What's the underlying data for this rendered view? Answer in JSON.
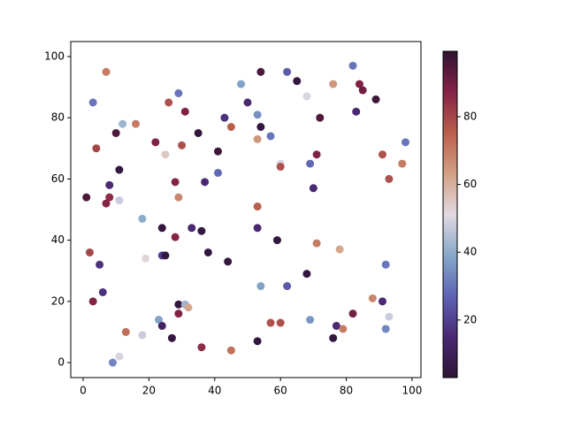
{
  "chart_data": {
    "type": "scatter",
    "x": [
      7,
      3,
      54,
      62,
      82,
      48,
      65,
      76,
      68,
      84,
      85,
      89,
      29,
      26,
      50,
      31,
      43,
      53,
      72,
      83,
      12,
      16,
      45,
      54,
      10,
      35,
      57,
      53,
      4,
      22,
      30,
      25,
      41,
      60,
      60,
      69,
      71,
      91,
      97,
      98,
      11,
      41,
      93,
      1,
      8,
      8,
      7,
      11,
      28,
      29,
      37,
      70,
      53,
      18,
      24,
      36,
      53,
      59,
      28,
      33,
      71,
      78,
      2,
      19,
      24,
      25,
      38,
      44,
      5,
      92,
      54,
      62,
      68,
      6,
      3,
      29,
      31,
      32,
      29,
      88,
      91,
      82,
      23,
      24,
      57,
      60,
      69,
      77,
      93,
      92,
      13,
      18,
      27,
      53,
      76,
      79,
      11,
      9,
      36,
      45
    ],
    "values": [
      95,
      85,
      95,
      95,
      97,
      91,
      92,
      91,
      87,
      91,
      89,
      86,
      88,
      85,
      85,
      82,
      80,
      81,
      80,
      82,
      78,
      78,
      77,
      77,
      75,
      75,
      74,
      73,
      70,
      72,
      71,
      68,
      69,
      65,
      64,
      65,
      68,
      68,
      65,
      72,
      63,
      62,
      60,
      54,
      58,
      54,
      52,
      53,
      59,
      54,
      59,
      57,
      51,
      47,
      44,
      43,
      44,
      40,
      41,
      44,
      39,
      37,
      36,
      34,
      35,
      35,
      36,
      33,
      32,
      32,
      25,
      25,
      29,
      23,
      20,
      19,
      19,
      18,
      16,
      21,
      20,
      16,
      14,
      12,
      13,
      13,
      14,
      12,
      15,
      11,
      10,
      9,
      8,
      7,
      8,
      11,
      2,
      0,
      5,
      4
    ],
    "c": [
      70,
      30,
      95,
      25,
      30,
      38,
      5,
      65,
      50,
      88,
      90,
      97,
      30,
      78,
      15,
      88,
      17,
      35,
      95,
      15,
      42,
      70,
      75,
      5,
      95,
      5,
      30,
      65,
      80,
      88,
      78,
      55,
      97,
      50,
      78,
      28,
      88,
      78,
      70,
      30,
      5,
      28,
      78,
      95,
      15,
      85,
      87,
      48,
      87,
      68,
      15,
      15,
      75,
      40,
      5,
      5,
      15,
      5,
      87,
      15,
      70,
      62,
      80,
      52,
      20,
      5,
      5,
      5,
      17,
      30,
      38,
      25,
      5,
      17,
      87,
      5,
      42,
      62,
      87,
      68,
      15,
      90,
      38,
      12,
      78,
      78,
      36,
      15,
      48,
      33,
      72,
      48,
      5,
      5,
      5,
      70,
      50,
      33,
      85,
      72
    ],
    "xlim": [
      -3.76,
      102.7
    ],
    "ylim": [
      -4.9,
      104.9
    ],
    "xticks": [
      0,
      20,
      40,
      60,
      80,
      100
    ],
    "yticks": [
      0,
      20,
      40,
      60,
      80,
      100
    ],
    "clim": [
      3,
      99.3
    ],
    "cticks": [
      20,
      40,
      60,
      80
    ],
    "colormap": [
      "#2f1436",
      "#4a2872",
      "#5e64b6",
      "#87a8c8",
      "#e2d9e2",
      "#d2a184",
      "#bb5e4c",
      "#842246",
      "#2f1436"
    ]
  }
}
